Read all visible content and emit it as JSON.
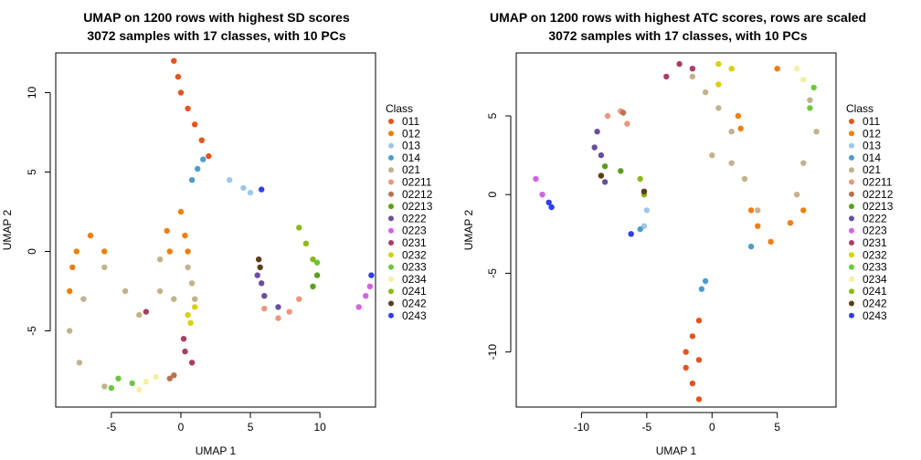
{
  "chart_data": [
    {
      "type": "scatter",
      "title": "UMAP on 1200 rows with highest SD scores",
      "subtitle": "3072 samples with 17 classes, with 10 PCs",
      "xlabel": "UMAP 1",
      "ylabel": "UMAP 2",
      "xlim": [
        -9,
        14
      ],
      "ylim": [
        -9.8,
        12.5
      ],
      "xticks": [
        -5,
        0,
        5,
        10
      ],
      "yticks": [
        -5,
        0,
        5,
        10
      ],
      "legend_title": "Class",
      "legend_position": "right",
      "series": [
        {
          "name": "011",
          "color": "#E5541F",
          "points": [
            [
              -0.5,
              12
            ],
            [
              -0.2,
              11
            ],
            [
              0,
              10
            ],
            [
              0.5,
              9
            ],
            [
              1,
              8
            ],
            [
              1.5,
              7
            ],
            [
              2,
              6
            ]
          ]
        },
        {
          "name": "012",
          "color": "#F07E0E",
          "points": [
            [
              -8,
              -2.5
            ],
            [
              -7.8,
              -1
            ],
            [
              -7.5,
              0
            ],
            [
              -6.5,
              1
            ],
            [
              -5.5,
              0
            ],
            [
              0,
              2.5
            ],
            [
              0.3,
              1
            ],
            [
              0.5,
              0
            ],
            [
              -0.8,
              0
            ],
            [
              -1,
              1.3
            ]
          ]
        },
        {
          "name": "013",
          "color": "#9DC8EA",
          "points": [
            [
              3.5,
              4.5
            ],
            [
              4.5,
              4
            ],
            [
              5,
              3.7
            ]
          ]
        },
        {
          "name": "014",
          "color": "#4D9CCB",
          "points": [
            [
              0.8,
              4.5
            ],
            [
              1.2,
              5.2
            ],
            [
              1.6,
              5.8
            ]
          ]
        },
        {
          "name": "021",
          "color": "#C2B28C",
          "points": [
            [
              -3,
              -4
            ],
            [
              -4,
              -2.5
            ],
            [
              -5.5,
              -1
            ],
            [
              -7,
              -3
            ],
            [
              -8,
              -5
            ],
            [
              -7.3,
              -7
            ],
            [
              -5.5,
              -8.5
            ],
            [
              0.5,
              -1
            ],
            [
              0.8,
              -2
            ],
            [
              1,
              -3
            ],
            [
              -1.5,
              -0.5
            ],
            [
              -1.5,
              -2.5
            ],
            [
              -0.5,
              -3
            ]
          ]
        },
        {
          "name": "02211",
          "color": "#EE9580",
          "points": [
            [
              6,
              -3.6
            ],
            [
              7,
              -4.2
            ],
            [
              7.8,
              -3.8
            ],
            [
              8.5,
              -3
            ]
          ]
        },
        {
          "name": "02212",
          "color": "#B8734E",
          "points": [
            [
              -0.8,
              -8
            ],
            [
              -0.5,
              -7.8
            ]
          ]
        },
        {
          "name": "02213",
          "color": "#5A9E1C",
          "points": [
            [
              9.5,
              -2.2
            ],
            [
              9.8,
              -1.5
            ]
          ]
        },
        {
          "name": "0222",
          "color": "#6A4E9B",
          "points": [
            [
              5.5,
              -1.5
            ],
            [
              6,
              -2.8
            ],
            [
              7,
              -3.5
            ],
            [
              5.8,
              -2
            ]
          ]
        },
        {
          "name": "0223",
          "color": "#D262E4",
          "points": [
            [
              12.8,
              -3.5
            ],
            [
              13.3,
              -2.8
            ],
            [
              13.6,
              -2.2
            ]
          ]
        },
        {
          "name": "0231",
          "color": "#A83E66",
          "points": [
            [
              0.2,
              -5.5
            ],
            [
              0.3,
              -6.3
            ],
            [
              0.8,
              -7
            ],
            [
              -2.5,
              -3.8
            ]
          ]
        },
        {
          "name": "0232",
          "color": "#DACF10",
          "points": [
            [
              0.5,
              -4
            ],
            [
              0.7,
              -4.5
            ],
            [
              1,
              -3.5
            ]
          ]
        },
        {
          "name": "0233",
          "color": "#6CC73C",
          "points": [
            [
              -4.5,
              -8
            ],
            [
              -3.5,
              -8.3
            ],
            [
              -5,
              -8.6
            ],
            [
              9.8,
              -0.7
            ]
          ]
        },
        {
          "name": "0234",
          "color": "#F6EFA6",
          "points": [
            [
              -3,
              -8.7
            ],
            [
              -2.5,
              -8.2
            ],
            [
              -1.8,
              -7.9
            ]
          ]
        },
        {
          "name": "0241",
          "color": "#8CB816",
          "points": [
            [
              8.5,
              1.5
            ],
            [
              9,
              0.5
            ],
            [
              9.5,
              -0.5
            ]
          ]
        },
        {
          "name": "0242",
          "color": "#5B3E15",
          "points": [
            [
              5.6,
              -0.5
            ],
            [
              5.7,
              -1
            ]
          ]
        },
        {
          "name": "0243",
          "color": "#2F3FEA",
          "points": [
            [
              5.8,
              3.9
            ],
            [
              13.7,
              -1.5
            ]
          ]
        }
      ]
    },
    {
      "type": "scatter",
      "title": "UMAP on 1200 rows with highest ATC scores, rows are scaled",
      "subtitle": "3072 samples with 17 classes, with 10 PCs",
      "xlabel": "UMAP 1",
      "ylabel": "UMAP 2",
      "xlim": [
        -15,
        9.5
      ],
      "ylim": [
        -13.5,
        9
      ],
      "xticks": [
        -10,
        -5,
        0,
        5
      ],
      "yticks": [
        -10,
        -5,
        0,
        5
      ],
      "legend_title": "Class",
      "legend_position": "right",
      "series": [
        {
          "name": "011",
          "color": "#E5541F",
          "points": [
            [
              -1,
              -13
            ],
            [
              -1.5,
              -12
            ],
            [
              -2,
              -11
            ],
            [
              -1,
              -10.5
            ],
            [
              -2,
              -10
            ],
            [
              -1.5,
              -9
            ],
            [
              -1,
              -8
            ]
          ]
        },
        {
          "name": "012",
          "color": "#F07E0E",
          "points": [
            [
              2,
              5
            ],
            [
              2.2,
              4.2
            ],
            [
              3,
              -1
            ],
            [
              3.5,
              -2
            ],
            [
              4.5,
              -3
            ],
            [
              6,
              -1.8
            ],
            [
              7,
              -1
            ],
            [
              5,
              8
            ]
          ]
        },
        {
          "name": "013",
          "color": "#9DC8EA",
          "points": [
            [
              -5,
              -1
            ],
            [
              -5.2,
              -2
            ]
          ]
        },
        {
          "name": "014",
          "color": "#4D9CCB",
          "points": [
            [
              -0.8,
              -6
            ],
            [
              -0.5,
              -5.5
            ],
            [
              3,
              -3.3
            ],
            [
              -5.5,
              -2.2
            ]
          ]
        },
        {
          "name": "021",
          "color": "#C2B28C",
          "points": [
            [
              -1.5,
              7.5
            ],
            [
              -0.5,
              6.5
            ],
            [
              0.5,
              5.5
            ],
            [
              1.5,
              4
            ],
            [
              0,
              2.5
            ],
            [
              1.5,
              2
            ],
            [
              2.5,
              1
            ],
            [
              3.5,
              -1
            ],
            [
              7.5,
              6
            ],
            [
              8,
              4
            ],
            [
              7,
              2
            ],
            [
              6.5,
              0
            ]
          ]
        },
        {
          "name": "02211",
          "color": "#EE9580",
          "points": [
            [
              -8,
              5
            ],
            [
              -7,
              5.3
            ],
            [
              -6.5,
              4.5
            ]
          ]
        },
        {
          "name": "02212",
          "color": "#B8734E",
          "points": [
            [
              -6.8,
              5.2
            ]
          ]
        },
        {
          "name": "02213",
          "color": "#5A9E1C",
          "points": [
            [
              -7,
              1.5
            ],
            [
              -8.2,
              1.8
            ]
          ]
        },
        {
          "name": "0222",
          "color": "#6A4E9B",
          "points": [
            [
              -8.8,
              4
            ],
            [
              -9,
              3
            ],
            [
              -8.5,
              2.5
            ],
            [
              -8.2,
              0.8
            ]
          ]
        },
        {
          "name": "0223",
          "color": "#D262E4",
          "points": [
            [
              -13.5,
              1
            ],
            [
              -13,
              0
            ]
          ]
        },
        {
          "name": "0231",
          "color": "#A83E66",
          "points": [
            [
              -3.5,
              7.5
            ],
            [
              -2.5,
              8.3
            ],
            [
              -1.5,
              8
            ]
          ]
        },
        {
          "name": "0232",
          "color": "#DACF10",
          "points": [
            [
              0.5,
              8.3
            ],
            [
              1.5,
              8
            ],
            [
              0.5,
              7
            ]
          ]
        },
        {
          "name": "0233",
          "color": "#6CC73C",
          "points": [
            [
              7.5,
              5.5
            ],
            [
              7.8,
              6.8
            ]
          ]
        },
        {
          "name": "0234",
          "color": "#F6EFA6",
          "points": [
            [
              6.5,
              8
            ],
            [
              7,
              7.3
            ]
          ]
        },
        {
          "name": "0241",
          "color": "#8CB816",
          "points": [
            [
              -5.5,
              1
            ],
            [
              -5.2,
              0
            ]
          ]
        },
        {
          "name": "0242",
          "color": "#5B3E15",
          "points": [
            [
              -8.5,
              1.2
            ],
            [
              -5.2,
              0.2
            ]
          ]
        },
        {
          "name": "0243",
          "color": "#2F3FEA",
          "points": [
            [
              -6.2,
              -2.5
            ],
            [
              -12.5,
              -0.5
            ],
            [
              -12.3,
              -0.8
            ]
          ]
        }
      ]
    }
  ]
}
